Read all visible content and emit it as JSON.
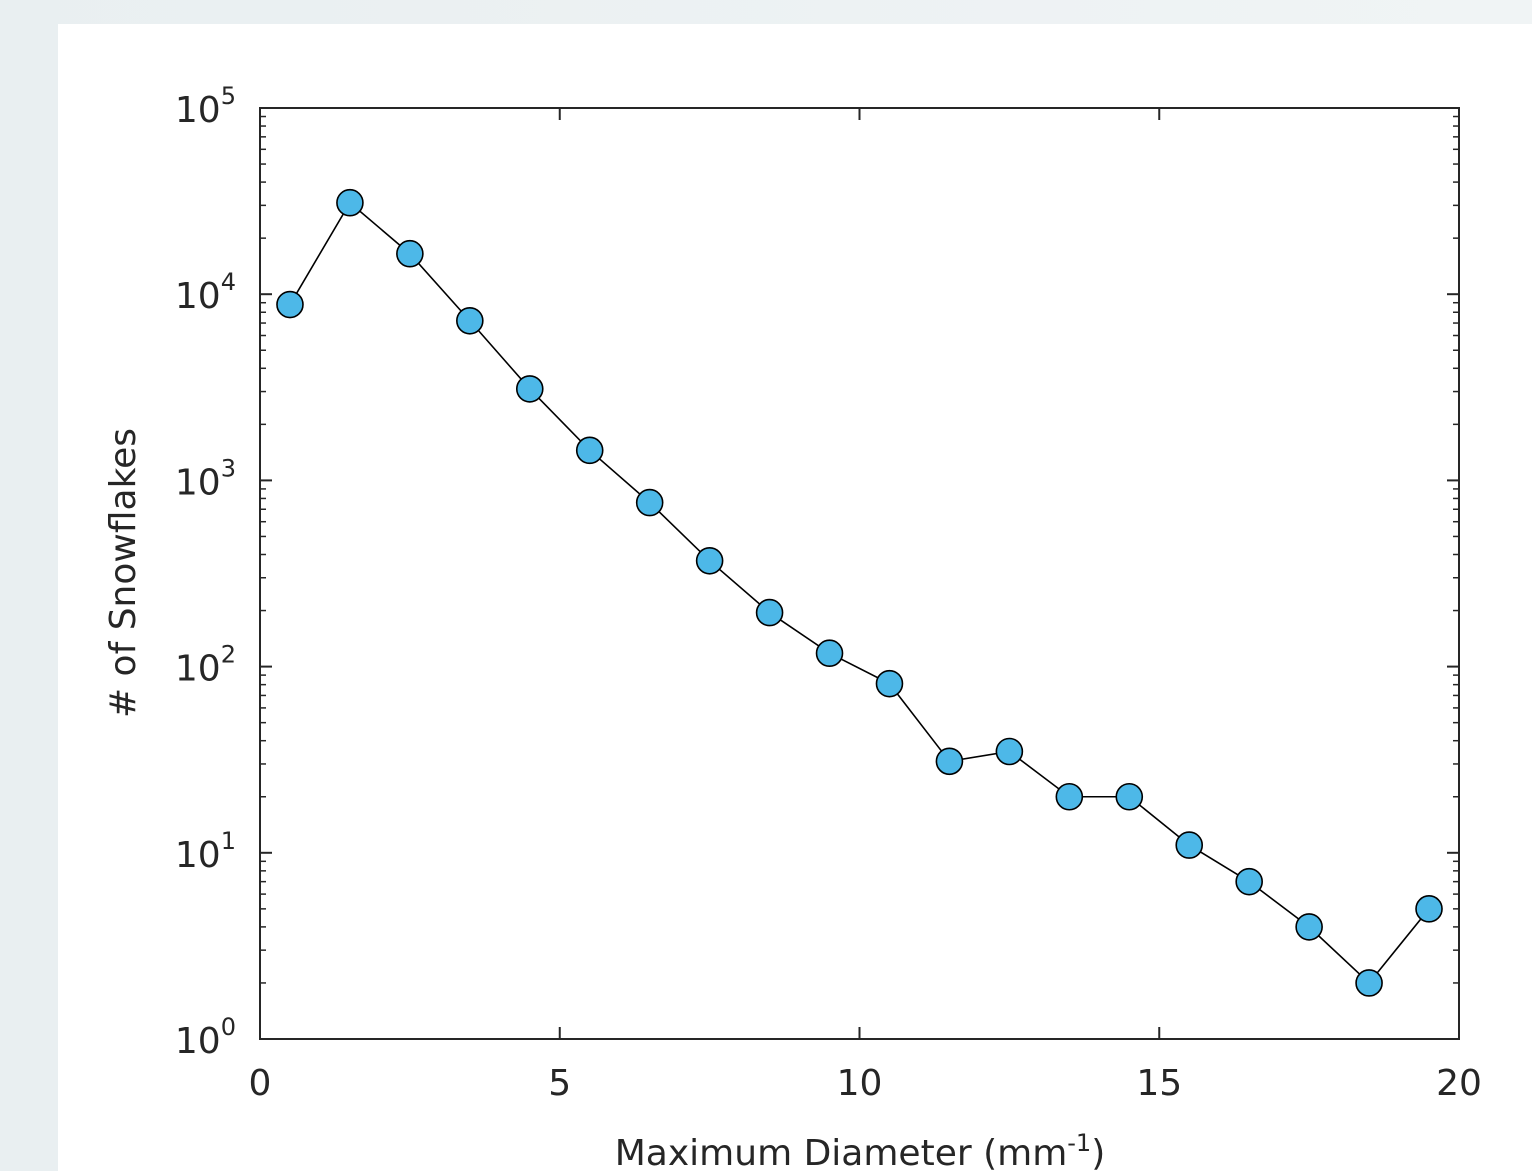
{
  "chart_data": {
    "type": "line",
    "title": "",
    "xlabel": "Maximum Diameter (mm",
    "xlabel_sup": "-1",
    "xlabel_close": ")",
    "ylabel": "# of Snowflakes",
    "xlim": [
      0,
      20
    ],
    "ylim": [
      1,
      100000
    ],
    "yscale": "log",
    "grid": false,
    "x_ticks": [
      {
        "value": 0,
        "label": "0"
      },
      {
        "value": 5,
        "label": "5"
      },
      {
        "value": 10,
        "label": "10"
      },
      {
        "value": 15,
        "label": "15"
      },
      {
        "value": 20,
        "label": "20"
      }
    ],
    "y_ticks": [
      {
        "value": 1,
        "base": "10",
        "exp": "0"
      },
      {
        "value": 10,
        "base": "10",
        "exp": "1"
      },
      {
        "value": 100,
        "base": "10",
        "exp": "2"
      },
      {
        "value": 1000,
        "base": "10",
        "exp": "3"
      },
      {
        "value": 10000,
        "base": "10",
        "exp": "4"
      },
      {
        "value": 100000,
        "base": "10",
        "exp": "5"
      }
    ],
    "series": [
      {
        "marker_color": "#4db8e8",
        "line_color": "#000000",
        "points": [
          [
            0.5,
            8800
          ],
          [
            1.5,
            31000
          ],
          [
            2.5,
            16500
          ],
          [
            3.5,
            7200
          ],
          [
            4.5,
            3100
          ],
          [
            5.5,
            1450
          ],
          [
            6.5,
            760
          ],
          [
            7.5,
            370
          ],
          [
            8.5,
            195
          ],
          [
            9.5,
            118
          ],
          [
            10.5,
            81
          ],
          [
            11.5,
            31
          ],
          [
            12.5,
            35
          ],
          [
            13.5,
            20
          ],
          [
            14.5,
            20
          ],
          [
            15.5,
            11
          ],
          [
            16.5,
            7
          ],
          [
            17.5,
            4
          ],
          [
            18.5,
            2
          ],
          [
            19.5,
            5
          ]
        ]
      }
    ]
  }
}
